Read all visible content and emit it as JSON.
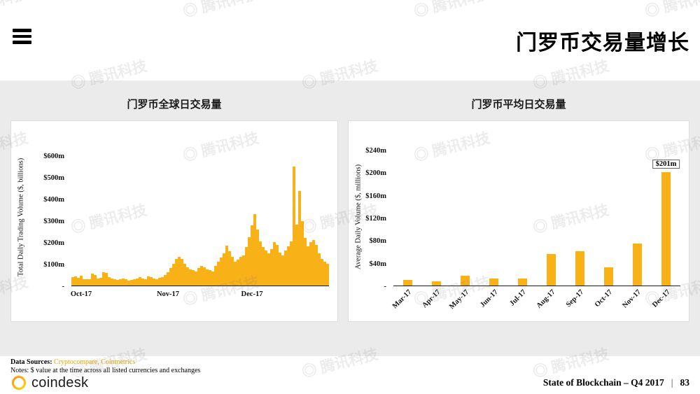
{
  "header": {
    "title": "门罗币交易量增长"
  },
  "watermark_text": "腾讯科技",
  "chart_data": [
    {
      "type": "bar",
      "title": "门罗币全球日交易量",
      "ylabel": "Total Daily Trading Volume ($, billions)",
      "ylim": [
        0,
        640
      ],
      "ytick_values": [
        600,
        500,
        400,
        300,
        200,
        100,
        0
      ],
      "ytick_labels": [
        "$600m",
        "$500m",
        "$400m",
        "$300m",
        "$200m",
        "$100m",
        "-"
      ],
      "x_axis": "daily values, Oct-17 through Dec-17",
      "xtick_labels": [
        "Oct-17",
        "Nov-17",
        "Dec-17"
      ],
      "xtick_positions": [
        0,
        31,
        61
      ],
      "bar_color": "#F8B117",
      "grid": "off",
      "values": [
        38,
        42,
        36,
        45,
        30,
        28,
        28,
        55,
        48,
        34,
        36,
        62,
        58,
        40,
        34,
        30,
        26,
        28,
        34,
        30,
        24,
        26,
        30,
        32,
        38,
        34,
        30,
        42,
        38,
        34,
        30,
        36,
        40,
        50,
        62,
        80,
        100,
        122,
        132,
        124,
        100,
        86,
        76,
        70,
        66,
        80,
        90,
        84,
        76,
        70,
        66,
        90,
        110,
        130,
        150,
        186,
        160,
        132,
        112,
        120,
        132,
        140,
        180,
        225,
        280,
        330,
        260,
        205,
        180,
        162,
        150,
        170,
        200,
        190,
        152,
        140,
        162,
        182,
        205,
        552,
        282,
        440,
        300,
        222,
        182,
        200,
        210,
        190,
        150,
        122,
        112,
        100
      ]
    },
    {
      "type": "bar",
      "title": "门罗币平均日交易量",
      "ylabel": "Average Daily Volume ($, millions)",
      "ylim": [
        0,
        245
      ],
      "ytick_values": [
        240,
        200,
        160,
        120,
        80,
        40,
        0
      ],
      "ytick_labels": [
        "$240m",
        "$200m",
        "$160m",
        "$120m",
        "$80m",
        "$40m",
        "-"
      ],
      "categories": [
        "Mar-17",
        "Apr-17",
        "May-17",
        "Jun-17",
        "Jul-17",
        "Aug-17",
        "Sep-17",
        "Oct-17",
        "Nov-17",
        "Dec-17"
      ],
      "values": [
        10,
        7,
        18,
        13,
        12,
        56,
        61,
        32,
        75,
        201
      ],
      "annotation": {
        "index": 9,
        "label": "$201m"
      },
      "bar_color": "#F8B117",
      "grid": "off"
    }
  ],
  "footer": {
    "data_sources_label": "Data Sources: ",
    "sources_text": "Cryptocompare, Coinmetrics",
    "notes": "Notes: $ value at the time across all listed currencies and exchanges",
    "brand": "coindesk",
    "report": "State of Blockchain – Q4 2017",
    "separator": "|",
    "page": "83"
  }
}
